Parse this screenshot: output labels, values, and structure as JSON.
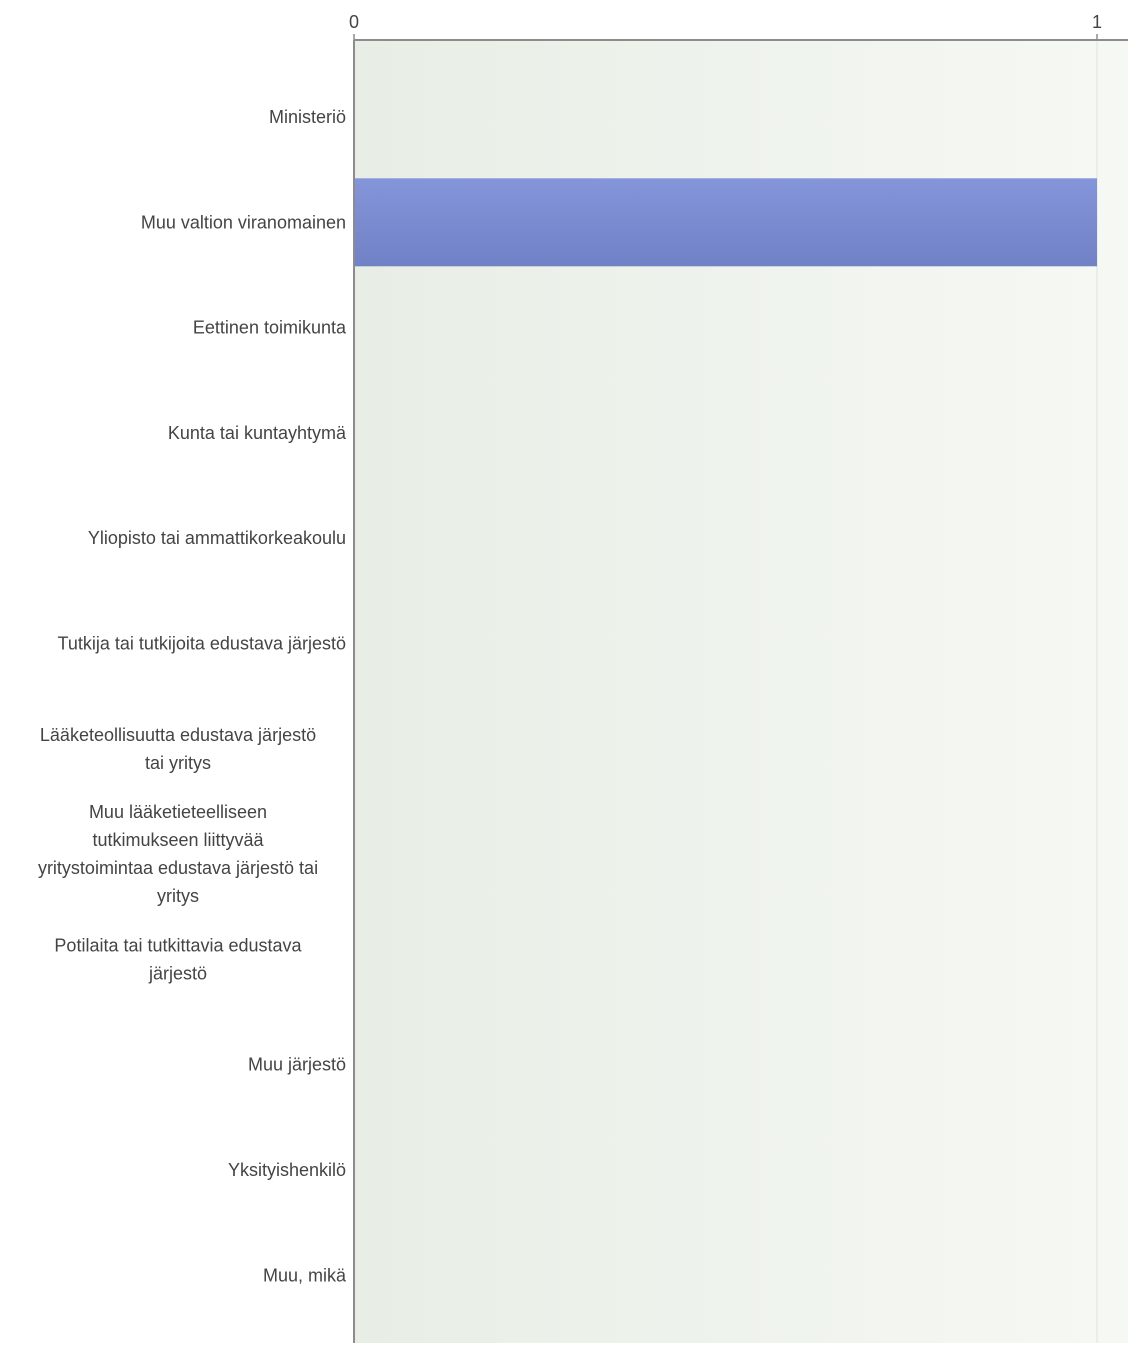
{
  "chart_data": {
    "type": "bar",
    "orientation": "horizontal",
    "categories": [
      "Ministeriö",
      "Muu valtion viranomainen",
      "Eettinen toimikunta",
      "Kunta tai kuntayhtymä",
      "Yliopisto tai ammattikorkeakoulu",
      "Tutkija tai tutkijoita edustava järjestö",
      "Lääketeollisuutta edustava järjestö tai yritys",
      "Muu lääketieteelliseen tutkimukseen liittyvää yritystoimintaa edustava järjestö tai yritys",
      "Potilaita tai tutkittavia edustava järjestö",
      "Muu järjestö",
      "Yksityishenkilö",
      "Muu, mikä"
    ],
    "category_lines": [
      [
        "Ministeriö"
      ],
      [
        "Muu valtion viranomainen"
      ],
      [
        "Eettinen toimikunta"
      ],
      [
        "Kunta tai kuntayhtymä"
      ],
      [
        "Yliopisto tai ammattikorkeakoulu"
      ],
      [
        "Tutkija tai tutkijoita edustava järjestö"
      ],
      [
        "Lääketeollisuutta edustava järjestö",
        "tai yritys"
      ],
      [
        "Muu lääketieteelliseen",
        "tutkimukseen liittyvää",
        "yritystoimintaa edustava järjestö tai",
        "yritys"
      ],
      [
        "Potilaita tai tutkittavia edustava",
        "järjestö"
      ],
      [
        "Muu järjestö"
      ],
      [
        "Yksityishenkilö"
      ],
      [
        "Muu, mikä"
      ]
    ],
    "values": [
      0,
      1,
      0,
      0,
      0,
      0,
      0,
      0,
      0,
      0,
      0,
      0
    ],
    "xlim": [
      0,
      1
    ],
    "x_ticks": [
      "0",
      "1"
    ],
    "axis_position": "top",
    "title": "",
    "xlabel": "",
    "ylabel": "",
    "grid": true,
    "legend": "none",
    "colors": {
      "bar": "#7f8fd6",
      "bar_dark": "#6f80c6",
      "plot_bg_left": "#e8eee6",
      "plot_bg_right": "#f6f8f4",
      "axis": "#8c8c8c",
      "text": "#444444"
    }
  }
}
